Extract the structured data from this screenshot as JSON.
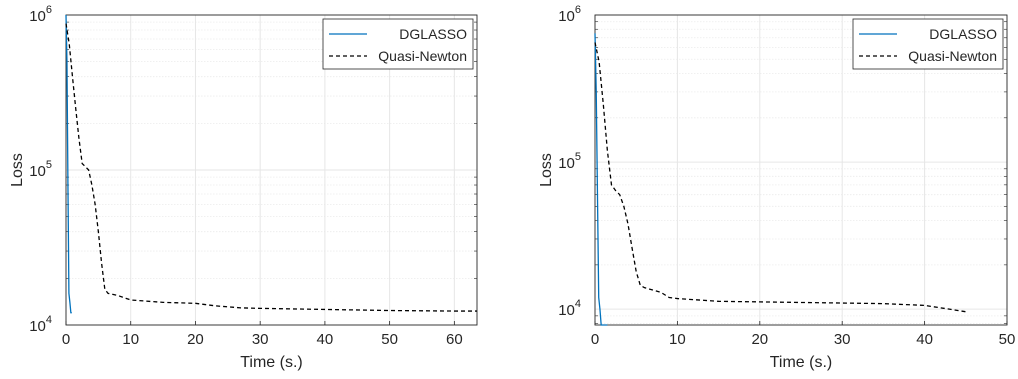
{
  "colors": {
    "dglasso": "#0072BD",
    "quasi_newton": "#000000",
    "grid": "#e6e6e6",
    "axes": "#262626"
  },
  "chart_data": [
    {
      "type": "line",
      "title": "",
      "xlabel": "Time (s.)",
      "ylabel": "Loss",
      "xlim": [
        0,
        63.5
      ],
      "ylim": [
        10000,
        1000000
      ],
      "yscale": "log",
      "grid": true,
      "legend_position": "top-right",
      "xticks": [
        0,
        10,
        20,
        30,
        40,
        50,
        60
      ],
      "yticks": [
        {
          "value": 10000,
          "label": "10^4"
        },
        {
          "value": 100000,
          "label": "10^5"
        },
        {
          "value": 1000000,
          "label": "10^6"
        }
      ],
      "series": [
        {
          "name": "DGLASSO",
          "style": "solid",
          "color": "#0072BD",
          "x": [
            0,
            0.15,
            0.3,
            0.45,
            0.6,
            0.75,
            0.9
          ],
          "y": [
            1000000,
            500000,
            80000,
            16000,
            14000,
            12000,
            12000
          ]
        },
        {
          "name": "Quasi-Newton",
          "style": "dashed",
          "color": "#000000",
          "x": [
            0,
            0.5,
            1.0,
            1.5,
            2.0,
            2.5,
            3.0,
            3.5,
            4.0,
            4.5,
            5.0,
            5.5,
            6.0,
            6.5,
            8.0,
            10.0,
            15.0,
            20.0,
            23.0,
            27.0,
            30.0,
            40.0,
            50.0,
            60.0,
            63.5
          ],
          "y": [
            880000,
            650000,
            400000,
            250000,
            160000,
            110000,
            105000,
            100000,
            80000,
            60000,
            40000,
            25000,
            17000,
            16000,
            15500,
            14500,
            14000,
            13800,
            13300,
            12900,
            12800,
            12600,
            12400,
            12300,
            12300
          ]
        }
      ]
    },
    {
      "type": "line",
      "title": "",
      "xlabel": "Time (s.)",
      "ylabel": "Loss",
      "xlim": [
        0,
        50
      ],
      "ylim": [
        7800,
        1000000
      ],
      "yscale": "log",
      "grid": true,
      "legend_position": "top-right",
      "xticks": [
        0,
        10,
        20,
        30,
        40,
        50
      ],
      "yticks": [
        {
          "value": 10000,
          "label": "10^4"
        },
        {
          "value": 100000,
          "label": "10^5"
        },
        {
          "value": 1000000,
          "label": "10^6"
        }
      ],
      "series": [
        {
          "name": "DGLASSO",
          "style": "solid",
          "color": "#0072BD",
          "x": [
            0,
            0.15,
            0.3,
            0.45,
            0.6,
            0.75,
            0.9,
            1.5
          ],
          "y": [
            750000,
            300000,
            60000,
            12000,
            10000,
            7800,
            7800,
            7800
          ]
        },
        {
          "name": "Quasi-Newton",
          "style": "dashed",
          "color": "#000000",
          "x": [
            0,
            0.5,
            1.0,
            1.5,
            2.0,
            2.5,
            3.0,
            3.5,
            4.0,
            4.5,
            5.0,
            5.5,
            6.0,
            7.0,
            8.0,
            9.0,
            10.0,
            15.0,
            20.0,
            30.0,
            35.0,
            40.0,
            43.0,
            45.0
          ],
          "y": [
            650000,
            480000,
            250000,
            120000,
            70000,
            64000,
            60000,
            50000,
            38000,
            26000,
            18000,
            14500,
            14000,
            13500,
            13000,
            12000,
            11800,
            11300,
            11200,
            11000,
            10900,
            10600,
            10000,
            9600
          ]
        }
      ]
    }
  ]
}
